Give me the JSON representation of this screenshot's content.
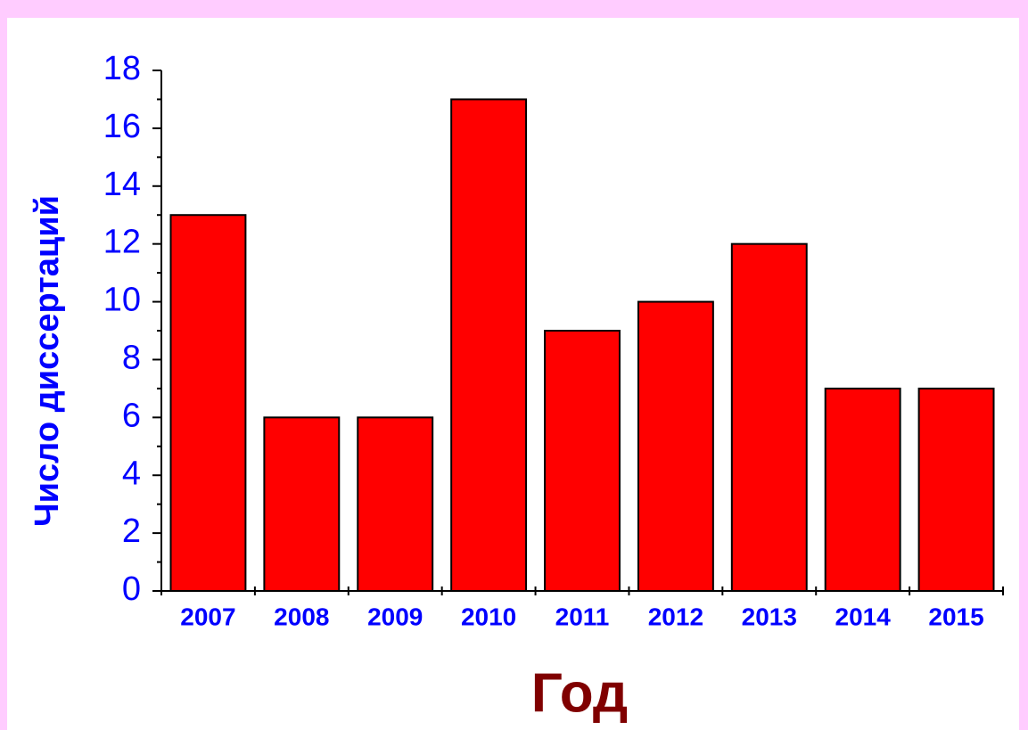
{
  "chart_data": {
    "type": "bar",
    "categories": [
      "2007",
      "2008",
      "2009",
      "2010",
      "2011",
      "2012",
      "2013",
      "2014",
      "2015"
    ],
    "values": [
      13,
      6,
      6,
      17,
      9,
      10,
      12,
      7,
      7
    ],
    "color": "#ff0000",
    "ylim": [
      0,
      18
    ],
    "yticks": [
      0,
      2,
      4,
      6,
      8,
      10,
      12,
      14,
      16,
      18
    ],
    "y_label": "Число диссертаций",
    "x_label": "Год"
  }
}
